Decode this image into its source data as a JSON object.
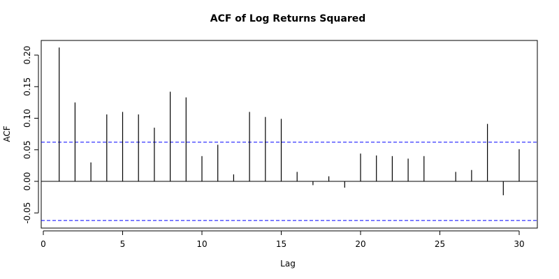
{
  "chart_data": {
    "type": "bar",
    "subtype": "acf-stem",
    "title": "ACF of Log Returns Squared",
    "xlabel": "Lag",
    "ylabel": "ACF",
    "xlim": [
      0,
      30.8
    ],
    "ylim": [
      -0.065,
      0.222
    ],
    "xticks": [
      0,
      5,
      10,
      15,
      20,
      25,
      30
    ],
    "yticks": [
      -0.05,
      0.0,
      0.05,
      0.1,
      0.15,
      0.2
    ],
    "ytick_labels": [
      "-0.05",
      "0.00",
      "0.05",
      "0.10",
      "0.15",
      "0.20"
    ],
    "lags": [
      1,
      2,
      3,
      4,
      5,
      6,
      7,
      8,
      9,
      10,
      11,
      12,
      13,
      14,
      15,
      16,
      17,
      18,
      19,
      20,
      21,
      22,
      23,
      24,
      25,
      26,
      27,
      28,
      29,
      30
    ],
    "values": [
      0.212,
      0.125,
      0.03,
      0.106,
      0.11,
      0.106,
      0.085,
      0.142,
      0.133,
      0.04,
      0.058,
      0.011,
      0.11,
      0.102,
      0.099,
      0.015,
      -0.006,
      0.008,
      -0.01,
      0.044,
      0.041,
      0.04,
      0.036,
      0.04,
      0.0,
      0.015,
      0.018,
      0.091,
      -0.022,
      0.051
    ],
    "confidence_bound": 0.062,
    "confidence_color": "#0000ff",
    "stem_color": "#000000",
    "grid": false
  }
}
